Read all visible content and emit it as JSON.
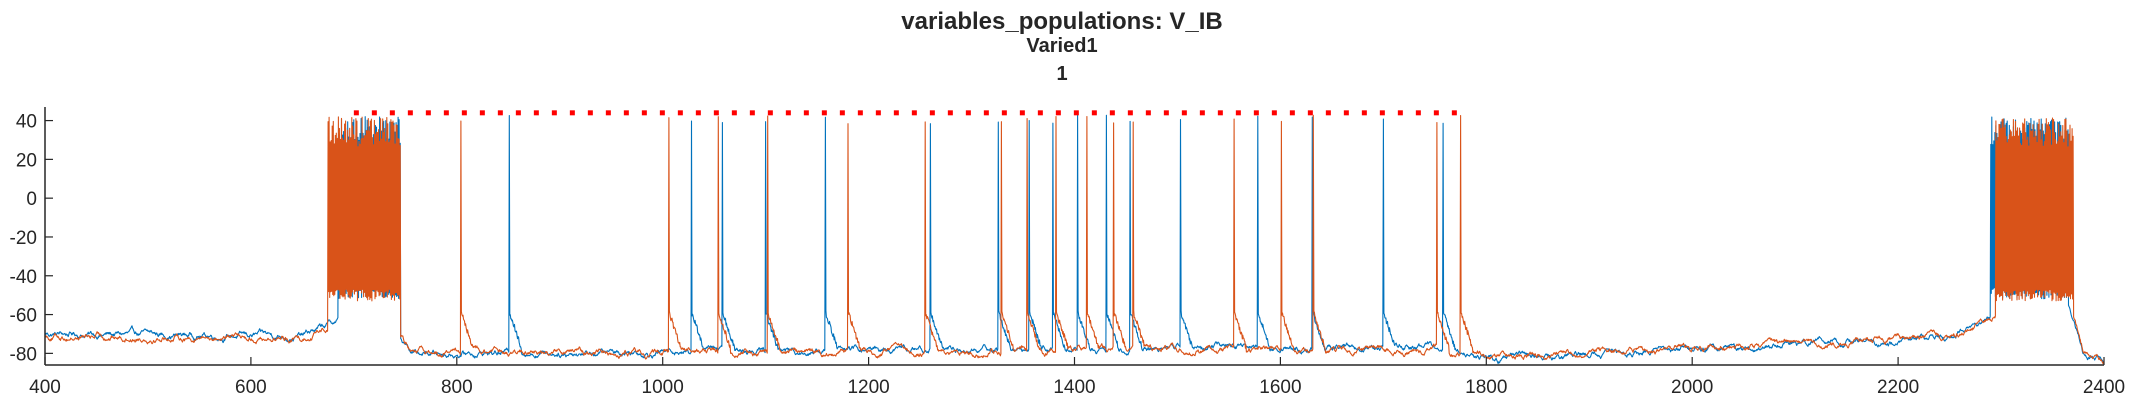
{
  "figure": {
    "title": "variables_populations: V_IB",
    "subtitle1": "Varied1",
    "subtitle2": "1"
  },
  "chart_data": {
    "type": "line",
    "title": "variables_populations: V_IB",
    "subtitle": [
      "Varied1",
      "1"
    ],
    "xlabel": "",
    "ylabel": "",
    "xlim": [
      400,
      2400
    ],
    "ylim": [
      -86,
      47
    ],
    "xticks": [
      400,
      600,
      800,
      1000,
      1200,
      1400,
      1600,
      1800,
      2000,
      2200,
      2400
    ],
    "yticks": [
      -80,
      -60,
      -40,
      -20,
      0,
      20,
      40
    ],
    "grid": false,
    "legend": "none",
    "colors": {
      "series1": "#0072BD",
      "series2": "#D95319",
      "markers": "#FF0000",
      "axes": "#262626"
    },
    "series": [
      {
        "color": "#0072BD",
        "baseline": [
          [
            400,
            -70
          ],
          [
            650,
            -71
          ],
          [
            690,
            -62
          ],
          [
            720,
            -58
          ],
          [
            760,
            -80
          ],
          [
            1000,
            -79
          ],
          [
            1250,
            -78
          ],
          [
            1500,
            -77
          ],
          [
            1760,
            -77
          ],
          [
            1800,
            -83
          ],
          [
            2000,
            -78
          ],
          [
            2250,
            -71
          ],
          [
            2300,
            -58
          ],
          [
            2365,
            -54
          ],
          [
            2380,
            -80
          ],
          [
            2400,
            -84
          ]
        ],
        "bursts": [
          [
            685,
            745,
            -52
          ],
          [
            2290,
            2365,
            -52
          ]
        ],
        "spikes": [
          851,
          1028,
          1058,
          1100,
          1158,
          1260,
          1326,
          1356,
          1379,
          1403,
          1431,
          1454,
          1503,
          1578,
          1631,
          1700,
          1758
        ]
      },
      {
        "color": "#D95319",
        "baseline": [
          [
            400,
            -71
          ],
          [
            650,
            -72
          ],
          [
            690,
            -62
          ],
          [
            720,
            -58
          ],
          [
            760,
            -80
          ],
          [
            1000,
            -79
          ],
          [
            1250,
            -79
          ],
          [
            1500,
            -78
          ],
          [
            1760,
            -78
          ],
          [
            1800,
            -82
          ],
          [
            2000,
            -77
          ],
          [
            2250,
            -72
          ],
          [
            2300,
            -58
          ],
          [
            2365,
            -53
          ],
          [
            2380,
            -80
          ],
          [
            2400,
            -84
          ]
        ],
        "bursts": [
          [
            675,
            745,
            -53
          ],
          [
            2295,
            2370,
            -53
          ]
        ],
        "spikes": [
          804,
          1006,
          1054,
          1102,
          1180,
          1255,
          1329,
          1354,
          1382,
          1412,
          1438,
          1457,
          1555,
          1601,
          1632,
          1752,
          1775
        ]
      }
    ],
    "marker_series": {
      "style": "dotted",
      "y": 44,
      "x_start": 700,
      "x_end": 1780
    }
  }
}
